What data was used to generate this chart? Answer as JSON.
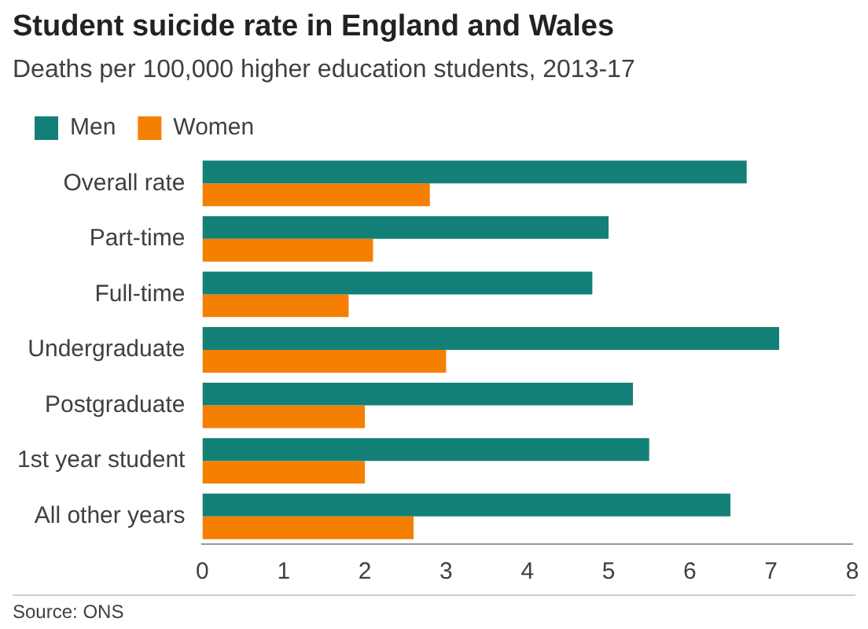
{
  "chart_data": {
    "type": "bar",
    "orientation": "horizontal",
    "title": "Student suicide rate in England and Wales",
    "subtitle": "Deaths per 100,000 higher education students, 2013-17",
    "categories": [
      "Overall rate",
      "Part-time",
      "Full-time",
      "Undergraduate",
      "Postgraduate",
      "1st year student",
      "All other years"
    ],
    "series": [
      {
        "name": "Men",
        "color": "#138078",
        "values": [
          6.7,
          5.0,
          4.8,
          7.1,
          5.3,
          5.5,
          6.5
        ]
      },
      {
        "name": "Women",
        "color": "#f57f00",
        "values": [
          2.8,
          2.1,
          1.8,
          3.0,
          2.0,
          2.0,
          2.6
        ]
      }
    ],
    "xlim": [
      0,
      8
    ],
    "xticks": [
      0,
      1,
      2,
      3,
      4,
      5,
      6,
      7,
      8
    ],
    "grid": false,
    "legend": "top left",
    "annotations": [
      "Source: ONS"
    ]
  }
}
